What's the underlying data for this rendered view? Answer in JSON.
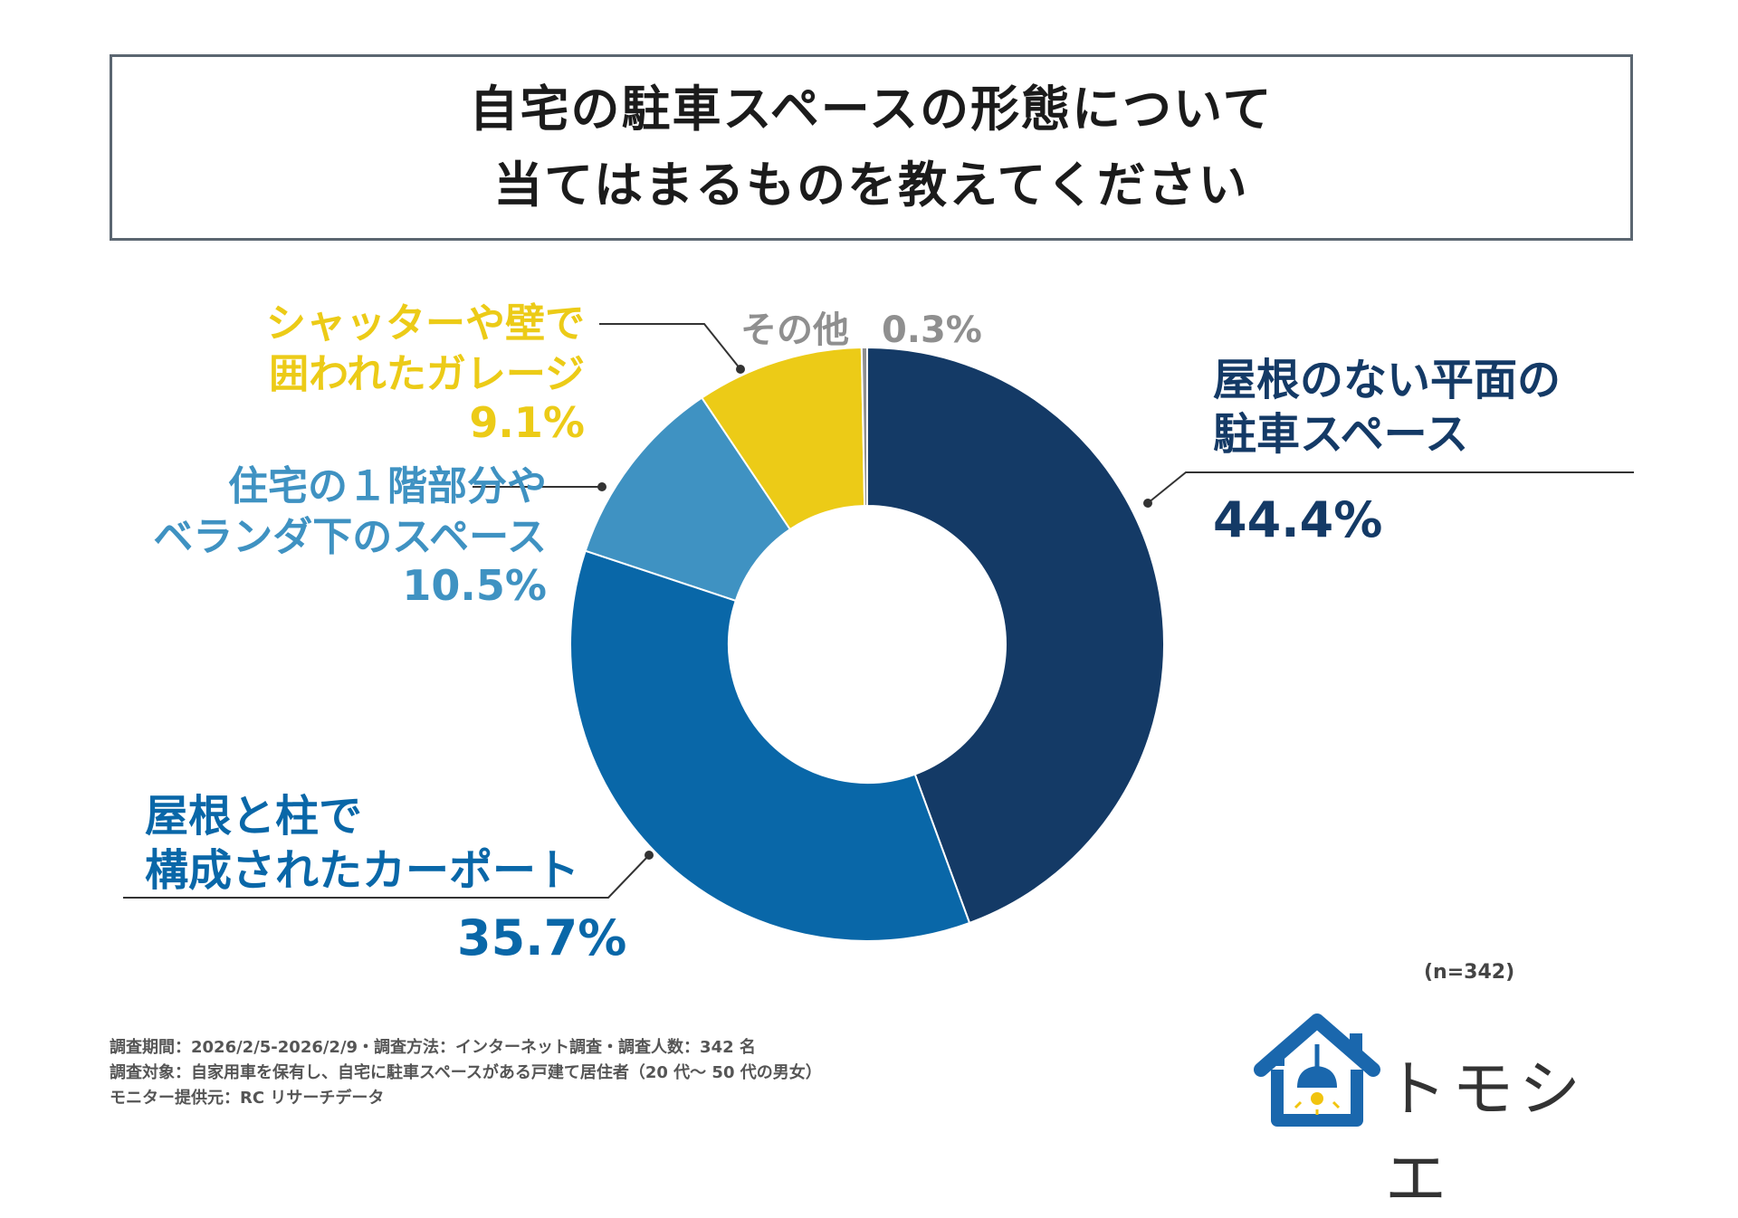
{
  "title": {
    "line1": "自宅の駐車スペースの形態について",
    "line2": "当てはまるものを教えてください"
  },
  "chart_data": {
    "type": "pie",
    "donut": true,
    "title": "自宅の駐車スペースの形態について 当てはまるものを教えてください",
    "sample_size": "(n=342)",
    "slices": [
      {
        "label_lines": [
          "屋根のない平面の",
          "駐車スペース"
        ],
        "value": 44.4,
        "value_text": "44.4%",
        "color": "#143a66"
      },
      {
        "label_lines": [
          "屋根と柱で",
          "構成されたカーポート"
        ],
        "value": 35.7,
        "value_text": "35.7%",
        "color": "#0967a8"
      },
      {
        "label_lines": [
          "住宅の１階部分や",
          "ベランダ下のスペース"
        ],
        "value": 10.5,
        "value_text": "10.5%",
        "color": "#3f92c2"
      },
      {
        "label_lines": [
          "シャッターや壁で",
          "囲われたガレージ"
        ],
        "value": 9.1,
        "value_text": "9.1%",
        "color": "#eccb17"
      },
      {
        "label_lines": [
          "その他"
        ],
        "value": 0.3,
        "value_text": "0.3%",
        "color": "#8f8f8f"
      }
    ]
  },
  "footer": {
    "line1": "調査期間：2026/2/5-2026/2/9・調査方法：インターネット調査・調査人数：342 名",
    "line2": "調査対象：自家用車を保有し、自宅に駐車スペースがある戸建て居住者（20 代～ 50 代の男女）",
    "line3": "モニター提供元：RC リサーチデータ"
  },
  "logo": {
    "text": "トモシエ",
    "color": "#1a67ad",
    "icon": "house-lamp-icon"
  },
  "colors": {
    "leader": "#333333",
    "title_border": "#5b6671"
  }
}
